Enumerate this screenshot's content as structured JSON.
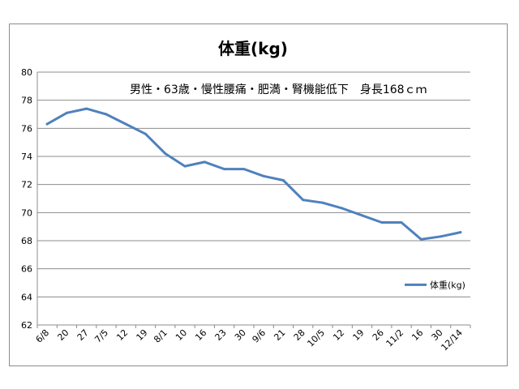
{
  "chart_data": {
    "type": "line",
    "title": "体重(kg)",
    "subtitle": "男性・63歳・慢性腰痛・肥満・腎機能低下　身長168ｃｍ",
    "categories": [
      "6/8",
      "20",
      "27",
      "7/5",
      "12",
      "19",
      "8/1",
      "10",
      "16",
      "23",
      "30",
      "9/6",
      "21",
      "28",
      "10/5",
      "12",
      "19",
      "26",
      "11/2",
      "16",
      "30",
      "12/14"
    ],
    "series": [
      {
        "name": "体重(kg)",
        "color": "#4f81bd",
        "values": [
          76.3,
          77.1,
          77.4,
          77.0,
          76.3,
          75.6,
          74.2,
          73.3,
          73.6,
          73.1,
          73.1,
          72.6,
          72.3,
          70.9,
          70.7,
          70.3,
          69.8,
          69.3,
          69.3,
          68.1,
          68.3,
          68.6
        ]
      }
    ],
    "ylim": [
      62,
      80
    ],
    "yticks": [
      "62",
      "64",
      "66",
      "68",
      "70",
      "72",
      "74",
      "76",
      "78",
      "80"
    ],
    "grid": true,
    "legend": "right"
  }
}
